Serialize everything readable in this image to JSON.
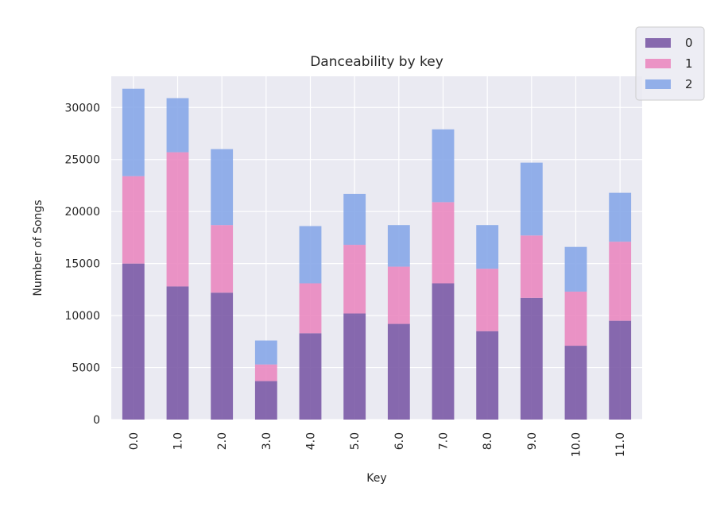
{
  "chart_data": {
    "type": "bar",
    "stacked": true,
    "title": "Danceability by key",
    "xlabel": "Key",
    "ylabel": "Number of Songs",
    "categories": [
      "0.0",
      "1.0",
      "2.0",
      "3.0",
      "4.0",
      "5.0",
      "6.0",
      "7.0",
      "8.0",
      "9.0",
      "10.0",
      "11.0"
    ],
    "series": [
      {
        "name": "0",
        "color": "#7b5aa6",
        "values": [
          15000,
          12800,
          12200,
          3700,
          8300,
          10200,
          9200,
          13100,
          8500,
          11700,
          7100,
          9500
        ]
      },
      {
        "name": "1",
        "color": "#ea88c0",
        "values": [
          8400,
          12900,
          6500,
          1600,
          4800,
          6600,
          5500,
          7800,
          6000,
          6000,
          5200,
          7600
        ]
      },
      {
        "name": "2",
        "color": "#87a7e8",
        "values": [
          8400,
          5200,
          7300,
          2300,
          5500,
          4900,
          4000,
          7000,
          4200,
          7000,
          4300,
          4700
        ]
      }
    ],
    "ylim": [
      0,
      33000
    ],
    "yticks": [
      0,
      5000,
      10000,
      15000,
      20000,
      25000,
      30000
    ],
    "grid": true,
    "legend_position": "top-right"
  }
}
